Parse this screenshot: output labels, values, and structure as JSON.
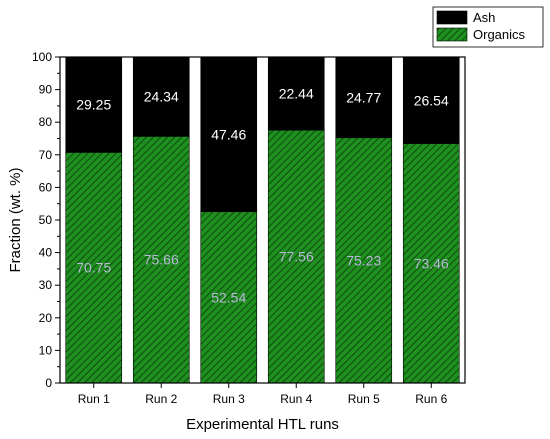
{
  "chart_data": {
    "type": "bar",
    "stacked": true,
    "categories": [
      "Run 1",
      "Run 2",
      "Run 3",
      "Run 4",
      "Run 5",
      "Run 6"
    ],
    "series": [
      {
        "name": "Organics",
        "values": [
          70.75,
          75.66,
          52.54,
          77.56,
          75.23,
          73.46
        ],
        "color": "#1f8f1f",
        "pattern": "diagonal-hatch",
        "label_color": "#b8b8d8"
      },
      {
        "name": "Ash",
        "values": [
          29.25,
          24.34,
          47.46,
          22.44,
          24.77,
          26.54
        ],
        "color": "#000000",
        "pattern": "solid",
        "label_color": "#ffffff"
      }
    ],
    "xlabel": "Experimental HTL runs",
    "ylabel": "Fraction (wt. %)",
    "ylim": [
      0,
      100
    ],
    "yticks": [
      0,
      10,
      20,
      30,
      40,
      50,
      60,
      70,
      80,
      90,
      100
    ],
    "grid": false,
    "legend": {
      "placement": "top-right",
      "order": [
        "Ash",
        "Organics"
      ]
    }
  }
}
